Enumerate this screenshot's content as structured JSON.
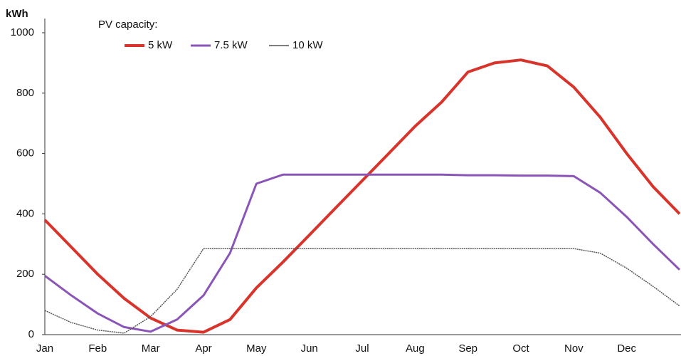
{
  "chart_data": {
    "type": "line",
    "y_label": "kWh",
    "legend_title": "PV capacity:",
    "legend": "top",
    "categories": [
      "Jan",
      null,
      "Feb",
      null,
      "Mar",
      null,
      "Apr",
      null,
      "May",
      null,
      "Jun",
      null,
      "Jul",
      null,
      "Aug",
      null,
      "Sep",
      null,
      "Oct",
      null,
      "Nov",
      null,
      "Dec",
      null,
      null
    ],
    "series": [
      {
        "name": "5 kW",
        "color": "#d9342b",
        "values": [
          380,
          290,
          200,
          120,
          55,
          15,
          8,
          50,
          155,
          240,
          330,
          420,
          510,
          600,
          690,
          770,
          870,
          900,
          910,
          890,
          820,
          720,
          600,
          490,
          400
        ]
      },
      {
        "name": "7.5 kW",
        "color": "#8b55b8",
        "values": [
          195,
          130,
          70,
          25,
          10,
          50,
          130,
          270,
          500,
          530,
          530,
          530,
          530,
          530,
          530,
          530,
          528,
          528,
          527,
          527,
          525,
          470,
          390,
          300,
          215
        ]
      },
      {
        "name": "10 kW",
        "color": "#555555",
        "values": [
          80,
          40,
          15,
          5,
          60,
          150,
          285,
          285,
          285,
          285,
          285,
          285,
          285,
          285,
          285,
          285,
          285,
          285,
          285,
          285,
          285,
          270,
          220,
          160,
          95
        ]
      }
    ],
    "ylim": [
      0,
      1000
    ],
    "yticks": [
      0,
      200,
      400,
      600,
      800,
      1000
    ],
    "grid": false
  }
}
